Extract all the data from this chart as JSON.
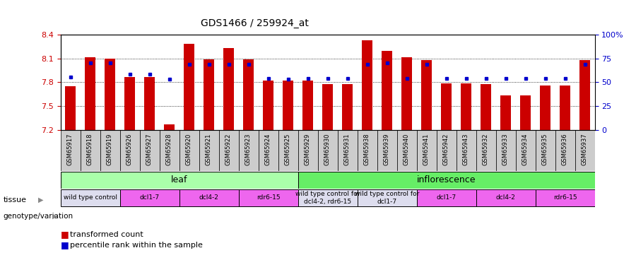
{
  "title": "GDS1466 / 259924_at",
  "samples": [
    "GSM65917",
    "GSM65918",
    "GSM65919",
    "GSM65926",
    "GSM65927",
    "GSM65928",
    "GSM65920",
    "GSM65921",
    "GSM65922",
    "GSM65923",
    "GSM65924",
    "GSM65925",
    "GSM65929",
    "GSM65930",
    "GSM65931",
    "GSM65938",
    "GSM65939",
    "GSM65940",
    "GSM65941",
    "GSM65942",
    "GSM65943",
    "GSM65932",
    "GSM65933",
    "GSM65934",
    "GSM65935",
    "GSM65936",
    "GSM65937"
  ],
  "bar_values": [
    7.75,
    8.11,
    8.1,
    7.87,
    7.87,
    7.27,
    8.28,
    8.09,
    8.23,
    8.09,
    7.82,
    7.82,
    7.82,
    7.78,
    7.78,
    8.33,
    8.19,
    8.11,
    8.08,
    7.79,
    7.79,
    7.78,
    7.64,
    7.64,
    7.76,
    7.76,
    8.08
  ],
  "percentile_values": [
    7.87,
    8.04,
    8.04,
    7.9,
    7.9,
    7.84,
    8.03,
    8.03,
    8.03,
    8.03,
    7.85,
    7.84,
    7.85,
    7.85,
    7.85,
    8.03,
    8.04,
    7.85,
    8.03,
    7.85,
    7.85,
    7.85,
    7.85,
    7.85,
    7.85,
    7.85,
    8.03
  ],
  "ylim": [
    7.2,
    8.4
  ],
  "yticks_left": [
    7.2,
    7.5,
    7.8,
    8.1,
    8.4
  ],
  "yticks_right": [
    0,
    25,
    50,
    75,
    100
  ],
  "bar_color": "#CC0000",
  "dot_color": "#0000CC",
  "tissue_groups": [
    {
      "label": "leaf",
      "start": 0,
      "end": 12,
      "color": "#AAFFAA"
    },
    {
      "label": "inflorescence",
      "start": 12,
      "end": 27,
      "color": "#66EE66"
    }
  ],
  "genotype_groups": [
    {
      "label": "wild type control",
      "start": 0,
      "end": 3,
      "color": "#DDDDEE"
    },
    {
      "label": "dcl1-7",
      "start": 3,
      "end": 6,
      "color": "#EE66EE"
    },
    {
      "label": "dcl4-2",
      "start": 6,
      "end": 9,
      "color": "#EE66EE"
    },
    {
      "label": "rdr6-15",
      "start": 9,
      "end": 12,
      "color": "#EE66EE"
    },
    {
      "label": "wild type control for\ndcl4-2, rdr6-15",
      "start": 12,
      "end": 15,
      "color": "#DDDDEE"
    },
    {
      "label": "wild type control for\ndcl1-7",
      "start": 15,
      "end": 18,
      "color": "#DDDDEE"
    },
    {
      "label": "dcl1-7",
      "start": 18,
      "end": 21,
      "color": "#EE66EE"
    },
    {
      "label": "dcl4-2",
      "start": 21,
      "end": 24,
      "color": "#EE66EE"
    },
    {
      "label": "rdr6-15",
      "start": 24,
      "end": 27,
      "color": "#EE66EE"
    }
  ],
  "legend_labels": [
    "transformed count",
    "percentile rank within the sample"
  ],
  "legend_colors": [
    "#CC0000",
    "#0000CC"
  ],
  "background_color": "#FFFFFF",
  "right_axis_color": "#0000CC",
  "left_axis_color": "#CC0000",
  "sample_box_color": "#CCCCCC",
  "grid_color": "#000000",
  "grid_lines": [
    7.5,
    7.8,
    8.1
  ]
}
